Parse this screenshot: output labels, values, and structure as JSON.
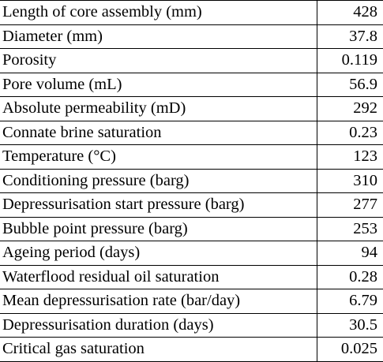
{
  "table": {
    "rows": [
      {
        "label": "Length of core assembly (mm)",
        "value": "428"
      },
      {
        "label": "Diameter (mm)",
        "value": "37.8"
      },
      {
        "label": "Porosity",
        "value": "0.119"
      },
      {
        "label": "Pore volume (mL)",
        "value": "56.9"
      },
      {
        "label": "Absolute permeability (mD)",
        "value": "292"
      },
      {
        "label": "Connate brine saturation",
        "value": "0.23"
      },
      {
        "label": "Temperature (°C)",
        "value": "123"
      },
      {
        "label": "Conditioning pressure (barg)",
        "value": "310"
      },
      {
        "label": "Depressurisation start pressure (barg)",
        "value": "277"
      },
      {
        "label": "Bubble point pressure (barg)",
        "value": "253"
      },
      {
        "label": "Ageing period (days)",
        "value": "94"
      },
      {
        "label": "Waterflood residual oil saturation",
        "value": "0.28"
      },
      {
        "label": "Mean depressurisation rate (bar/day)",
        "value": "6.79"
      },
      {
        "label": "Depressurisation duration (days)",
        "value": "30.5"
      },
      {
        "label": "Critical gas saturation",
        "value": "0.025"
      }
    ]
  }
}
